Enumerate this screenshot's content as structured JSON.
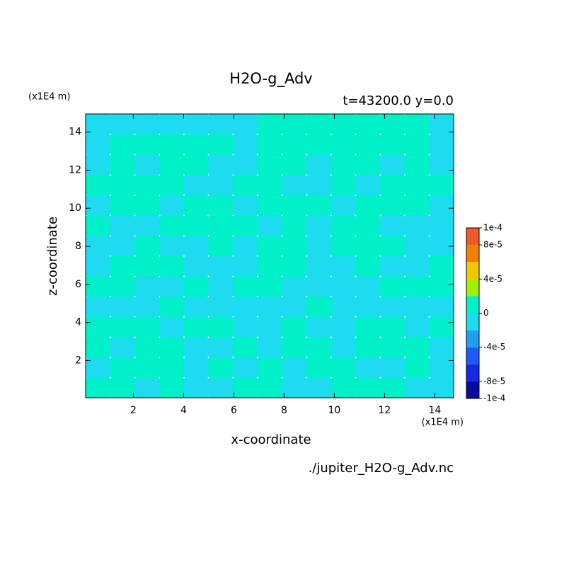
{
  "chart_data": {
    "type": "contour",
    "title": "H2O-g_Adv",
    "subtitle": "t=43200.0 y=0.0",
    "x_label": "x-coordinate",
    "y_label": "z-coordinate",
    "x_unit": "(x1E4 m)",
    "y_unit": "(x1E4 m)",
    "source": "./jupiter_H2O-g_Adv.nc",
    "xlim": [
      0.1,
      14.75
    ],
    "ylim": [
      0.05,
      14.95
    ],
    "xticks": [
      2,
      4,
      6,
      8,
      10,
      12,
      14
    ],
    "yticks": [
      2,
      4,
      6,
      8,
      10,
      12,
      14
    ],
    "levels": [
      -0.0001,
      -8e-05,
      -6e-05,
      -4e-05,
      -2e-05,
      0,
      2e-05,
      4e-05,
      6e-05,
      8e-05,
      0.0001
    ],
    "colors": [
      "#0a0a9c",
      "#1428e6",
      "#1e5af5",
      "#1ea0f0",
      "#1edcf0",
      "#00f0c8",
      "#a0f000",
      "#f0c800",
      "#f08200",
      "#f05a28",
      "#f03c3c"
    ],
    "colorbar_ticks": [
      {
        "value": 0.0001,
        "label": "1e-4"
      },
      {
        "value": 8e-05,
        "label": "8e-5"
      },
      {
        "value": 4e-05,
        "label": "4e-5"
      },
      0,
      {
        "value": -4e-05,
        "label": "-4e-5"
      },
      {
        "value": -8e-05,
        "label": "-8e-5"
      },
      {
        "value": -0.0001,
        "label": "-1e-4"
      }
    ],
    "z": [
      [
        1e-05,
        1e-05,
        -1e-05,
        1e-05,
        -1e-05,
        -1e-05,
        1e-05,
        1e-05,
        -1e-05,
        -1e-05,
        1e-05,
        1e-05,
        1e-05,
        -1e-05,
        -1e-05
      ],
      [
        -1e-05,
        1e-05,
        1e-05,
        1e-05,
        -1e-05,
        1e-05,
        -1e-05,
        1e-05,
        -1e-05,
        1e-05,
        1e-05,
        -1e-05,
        -1e-05,
        1e-05,
        -1e-05
      ],
      [
        1e-05,
        -1e-05,
        1e-05,
        1e-05,
        -1e-05,
        -1e-05,
        1e-05,
        -1e-05,
        1e-05,
        1e-05,
        -1e-05,
        1e-05,
        1e-05,
        1e-05,
        -1e-05
      ],
      [
        1e-05,
        1e-05,
        1e-05,
        -1e-05,
        1e-05,
        1e-05,
        -1e-05,
        -1e-05,
        1e-05,
        -1e-05,
        -1e-05,
        1e-05,
        1e-05,
        -1e-05,
        1e-05
      ],
      [
        -1e-05,
        -1e-05,
        -1e-05,
        1e-05,
        -1e-05,
        -1e-05,
        -1e-05,
        -1e-05,
        -1e-05,
        1e-05,
        -1e-05,
        -1e-05,
        -1e-05,
        -1e-05,
        -1e-05
      ],
      [
        1e-05,
        1e-05,
        -1e-05,
        -1e-05,
        1e-05,
        -1e-05,
        1e-05,
        1e-05,
        -1e-05,
        -1e-05,
        -1e-05,
        -1e-05,
        1e-05,
        1e-05,
        1e-05
      ],
      [
        -1e-05,
        1e-05,
        1e-05,
        1e-05,
        -1e-05,
        -1e-05,
        -1e-05,
        1e-05,
        1e-05,
        -1e-05,
        -1e-05,
        1e-05,
        -1e-05,
        -1e-05,
        1e-05
      ],
      [
        -1e-05,
        -1e-05,
        1e-05,
        -1e-05,
        -1e-05,
        1e-05,
        -1e-05,
        1e-05,
        1e-05,
        -1e-05,
        1e-05,
        1e-05,
        1e-05,
        -1e-05,
        -1e-05
      ],
      [
        1e-05,
        -1e-05,
        -1e-05,
        1e-05,
        1e-05,
        1e-05,
        1e-05,
        -1e-05,
        1e-05,
        -1e-05,
        1e-05,
        1e-05,
        -1e-05,
        -1e-05,
        -1e-05
      ],
      [
        -1e-05,
        1e-05,
        1e-05,
        -1e-05,
        1e-05,
        1e-05,
        -1e-05,
        1e-05,
        1e-05,
        1e-05,
        -1e-05,
        1e-05,
        1e-05,
        1e-05,
        -1e-05
      ],
      [
        1e-05,
        1e-05,
        1e-05,
        1e-05,
        -1e-05,
        -1e-05,
        1e-05,
        1e-05,
        -1e-05,
        -1e-05,
        1e-05,
        -1e-05,
        1e-05,
        1e-05,
        1e-05
      ],
      [
        -1e-05,
        1e-05,
        -1e-05,
        1e-05,
        1e-05,
        -1e-05,
        -1e-05,
        1e-05,
        1e-05,
        -1e-05,
        1e-05,
        1e-05,
        -1e-05,
        1e-05,
        -1e-05
      ],
      [
        -1e-05,
        1e-05,
        1e-05,
        1e-05,
        1e-05,
        1e-05,
        -1e-05,
        1e-05,
        1e-05,
        1e-05,
        1e-05,
        1e-05,
        1e-05,
        1e-05,
        -1e-05
      ],
      [
        -1e-05,
        -1e-05,
        -1e-05,
        -1e-05,
        -1e-05,
        -1e-05,
        -1e-05,
        1e-05,
        1e-05,
        1e-05,
        1e-05,
        1e-05,
        1e-05,
        1e-05,
        -1e-05
      ]
    ]
  }
}
